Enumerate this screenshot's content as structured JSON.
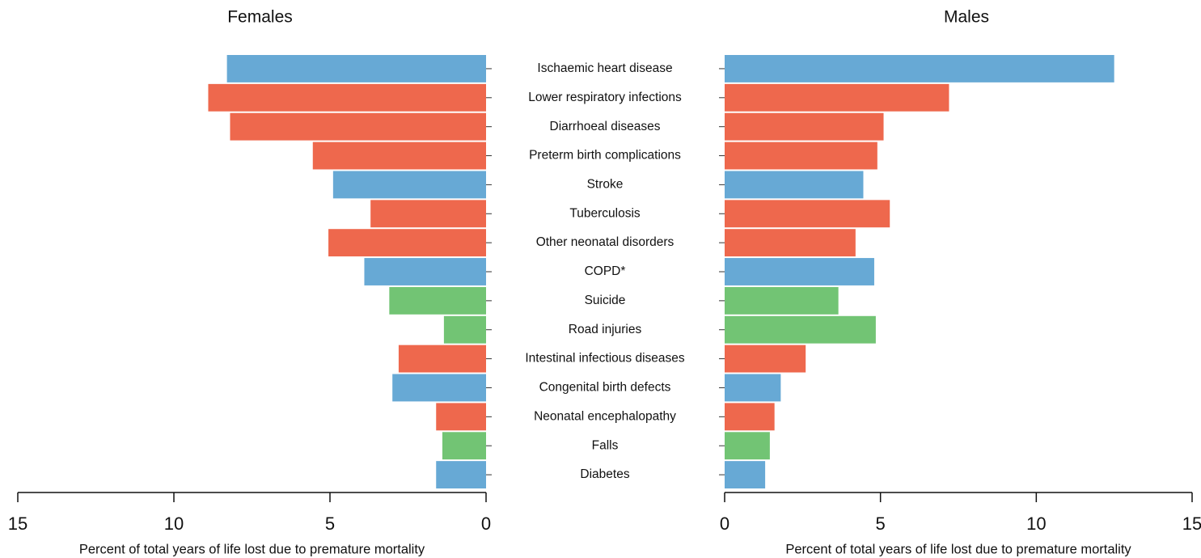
{
  "chart_data": [
    {
      "type": "bar",
      "orientation": "horizontal",
      "title": "Females",
      "categories": [
        "Ischaemic heart disease",
        "Lower respiratory infections",
        "Diarrhoeal diseases",
        "Preterm birth complications",
        "Stroke",
        "Tuberculosis",
        "Other neonatal disorders",
        "COPD*",
        "Suicide",
        "Road injuries",
        "Intestinal infectious diseases",
        "Congenital birth defects",
        "Neonatal encephalopathy",
        "Falls",
        "Diabetes"
      ],
      "values": [
        8.3,
        8.9,
        8.2,
        5.55,
        4.9,
        3.7,
        5.05,
        3.9,
        3.1,
        1.35,
        2.8,
        3.0,
        1.6,
        1.4,
        1.6
      ],
      "colors": [
        "#67a9d5",
        "#ee684d",
        "#ee684d",
        "#ee684d",
        "#67a9d5",
        "#ee684d",
        "#ee684d",
        "#67a9d5",
        "#72c474",
        "#72c474",
        "#ee684d",
        "#67a9d5",
        "#ee684d",
        "#72c474",
        "#67a9d5"
      ],
      "xlim": [
        15,
        0
      ],
      "xticks": [
        15,
        10,
        5,
        0
      ],
      "xlabel": "Percent of total years of life lost due to premature mortality"
    },
    {
      "type": "bar",
      "orientation": "horizontal",
      "title": "Males",
      "values": [
        12.5,
        7.2,
        5.1,
        4.9,
        4.45,
        5.3,
        4.2,
        4.8,
        3.65,
        4.85,
        2.6,
        1.8,
        1.6,
        1.45,
        1.3
      ],
      "colors": [
        "#67a9d5",
        "#ee684d",
        "#ee684d",
        "#ee684d",
        "#67a9d5",
        "#ee684d",
        "#ee684d",
        "#67a9d5",
        "#72c474",
        "#72c474",
        "#ee684d",
        "#67a9d5",
        "#ee684d",
        "#72c474",
        "#67a9d5"
      ],
      "xlim": [
        0,
        15
      ],
      "xticks": [
        0,
        5,
        10,
        15
      ],
      "xlabel": "Percent of total years of life lost due to premature mortality"
    }
  ]
}
